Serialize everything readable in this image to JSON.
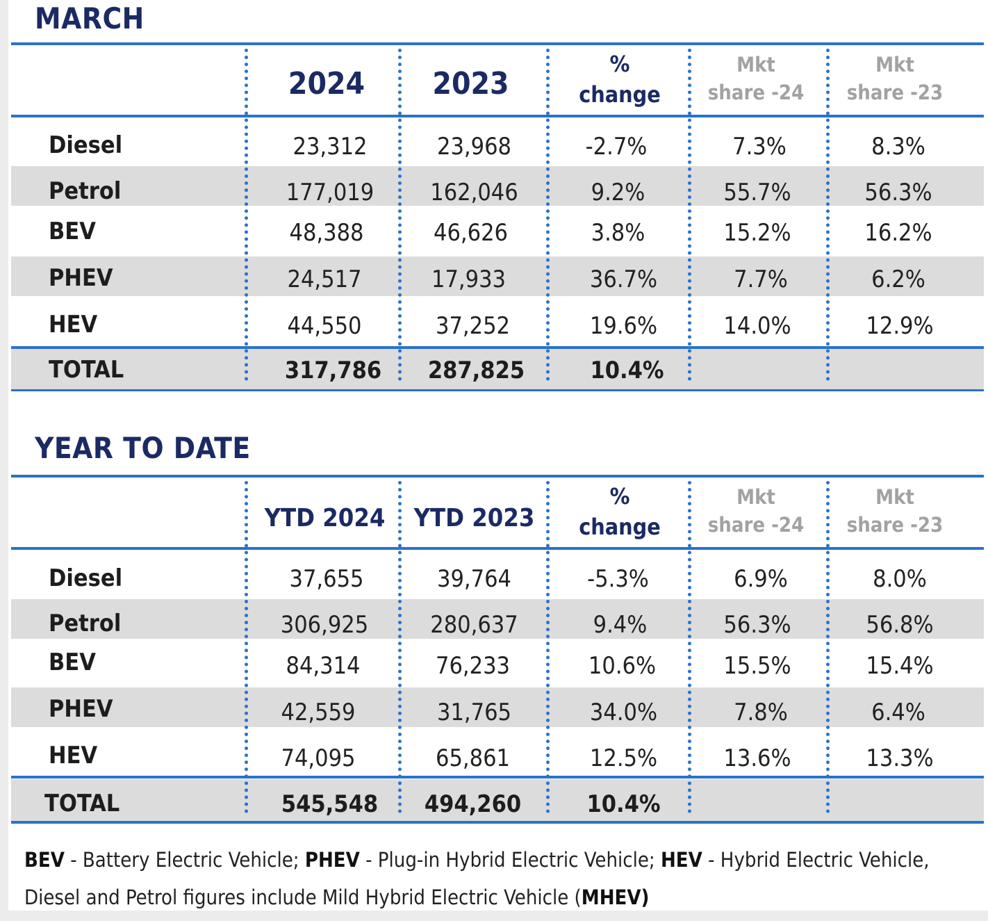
{
  "march": {
    "title": "MARCH",
    "headers": {
      "col1": "2024",
      "col2": "2023",
      "change_sym": "%",
      "change_word": "change",
      "mkt24_a": "Mkt",
      "mkt24_b": "share -24",
      "mkt23_a": "Mkt",
      "mkt23_b": "share -23"
    },
    "rows": [
      {
        "label": "Diesel",
        "v1": "23,312",
        "v2": "23,968",
        "chg": "-2.7%",
        "m24": "7.3%",
        "m23": "8.3%"
      },
      {
        "label": "Petrol",
        "v1": "177,019",
        "v2": "162,046",
        "chg": "9.2%",
        "m24": "55.7%",
        "m23": "56.3%"
      },
      {
        "label": "BEV",
        "v1": "48,388",
        "v2": "46,626",
        "chg": "3.8%",
        "m24": "15.2%",
        "m23": "16.2%"
      },
      {
        "label": "PHEV",
        "v1": "24,517",
        "v2": "17,933",
        "chg": "36.7%",
        "m24": "7.7%",
        "m23": "6.2%"
      },
      {
        "label": "HEV",
        "v1": "44,550",
        "v2": "37,252",
        "chg": "19.6%",
        "m24": "14.0%",
        "m23": "12.9%"
      }
    ],
    "total": {
      "label": "TOTAL",
      "v1": "317,786",
      "v2": "287,825",
      "chg": "10.4%"
    }
  },
  "ytd": {
    "title": "YEAR TO DATE",
    "headers": {
      "col1": "YTD 2024",
      "col2": "YTD 2023",
      "change_sym": "%",
      "change_word": "change",
      "mkt24_a": "Mkt",
      "mkt24_b": "share -24",
      "mkt23_a": "Mkt",
      "mkt23_b": "share -23"
    },
    "rows": [
      {
        "label": "Diesel",
        "v1": "37,655",
        "v2": "39,764",
        "chg": "-5.3%",
        "m24": "6.9%",
        "m23": "8.0%"
      },
      {
        "label": "Petrol",
        "v1": "306,925",
        "v2": "280,637",
        "chg": "9.4%",
        "m24": "56.3%",
        "m23": "56.8%"
      },
      {
        "label": "BEV",
        "v1": "84,314",
        "v2": "76,233",
        "chg": "10.6%",
        "m24": "15.5%",
        "m23": "15.4%"
      },
      {
        "label": "PHEV",
        "v1": "42,559",
        "v2": "31,765",
        "chg": "34.0%",
        "m24": "7.8%",
        "m23": "6.4%"
      },
      {
        "label": "HEV",
        "v1": "74,095",
        "v2": "65,861",
        "chg": "12.5%",
        "m24": "13.6%",
        "m23": "13.3%"
      }
    ],
    "total": {
      "label": "TOTAL",
      "v1": "545,548",
      "v2": "494,260",
      "chg": "10.4%"
    }
  },
  "footnote": {
    "bev_abbr": "BEV",
    "bev_text": " - Battery Electric Vehicle; ",
    "phev_abbr": "PHEV",
    "phev_text": " - Plug-in Hybrid Electric Vehicle; ",
    "hev_abbr": "HEV",
    "hev_text": " - Hybrid Electric Vehicle,",
    "line2_text": "Diesel and Petrol figures include Mild Hybrid Electric Vehicle (",
    "mhev_abbr": "MHEV)"
  }
}
